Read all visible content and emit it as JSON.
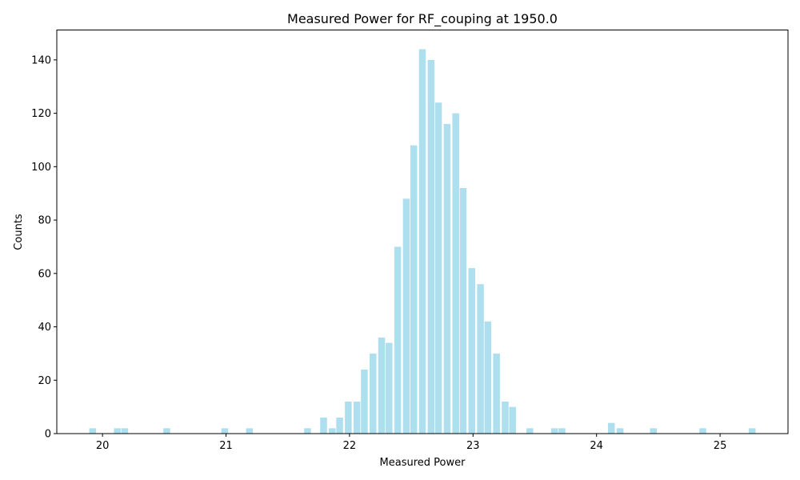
{
  "chart_data": {
    "type": "bar",
    "title": "Measured Power for RF_couping at 1950.0",
    "xlabel": "Measured Power",
    "ylabel": "Counts",
    "xlim": [
      19.63,
      25.55
    ],
    "ylim": [
      0,
      151.2
    ],
    "bar_width": 0.055,
    "bar_color": "#ADDFEE",
    "x_ticks": [
      20,
      21,
      22,
      23,
      24,
      25
    ],
    "y_ticks": [
      0,
      20,
      40,
      60,
      80,
      100,
      120,
      140
    ],
    "x": [
      19.92,
      20.12,
      20.18,
      20.52,
      20.99,
      21.19,
      21.66,
      21.79,
      21.86,
      21.92,
      21.99,
      22.06,
      22.12,
      22.19,
      22.26,
      22.32,
      22.39,
      22.46,
      22.52,
      22.59,
      22.66,
      22.72,
      22.79,
      22.86,
      22.92,
      22.99,
      23.06,
      23.12,
      23.19,
      23.26,
      23.32,
      23.46,
      23.66,
      23.72,
      24.12,
      24.19,
      24.46,
      24.86,
      25.26
    ],
    "values": [
      2,
      2,
      2,
      2,
      2,
      2,
      2,
      6,
      2,
      6,
      12,
      12,
      24,
      30,
      36,
      34,
      70,
      88,
      108,
      144,
      140,
      124,
      116,
      120,
      92,
      62,
      56,
      42,
      30,
      12,
      10,
      2,
      2,
      2,
      4,
      2,
      2,
      2,
      2
    ]
  }
}
